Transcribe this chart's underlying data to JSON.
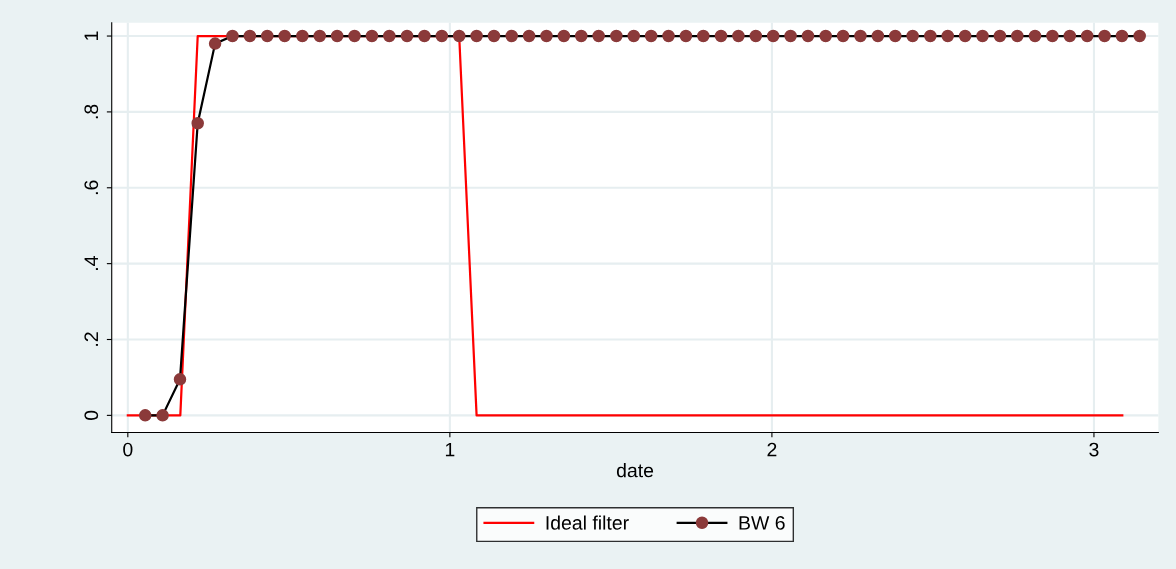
{
  "chart_data": {
    "type": "line",
    "xlabel": "date",
    "xlim": [
      -0.05,
      3.2
    ],
    "xticks": [
      0,
      1,
      2,
      3
    ],
    "ylim": [
      -0.045,
      1.035
    ],
    "yticks": [
      0,
      {
        "value": 0.2,
        "label": ".2"
      },
      {
        "value": 0.4,
        "label": ".4"
      },
      {
        "value": 0.6,
        "label": ".6"
      },
      {
        "value": 0.8,
        "label": ".8"
      },
      1
    ],
    "grid": true,
    "legend": "bottom",
    "series": [
      {
        "name": "Ideal filter",
        "color": "#ff0000",
        "marker": "none",
        "x": [
          0,
          0.163,
          0.217,
          1.029,
          1.083,
          3.088
        ],
        "values": [
          0,
          0,
          1,
          1,
          0,
          0
        ]
      },
      {
        "name": "BW 6",
        "color": "#8b3a3a",
        "marker": "circle",
        "x": [
          0.054,
          0.108,
          0.162,
          0.217,
          0.271,
          0.325,
          0.379,
          0.433,
          0.487,
          0.542,
          0.596,
          0.65,
          0.704,
          0.758,
          0.812,
          0.867,
          0.921,
          0.975,
          1.029,
          1.083,
          1.137,
          1.192,
          1.246,
          1.3,
          1.354,
          1.408,
          1.462,
          1.517,
          1.571,
          1.625,
          1.679,
          1.733,
          1.787,
          1.842,
          1.896,
          1.95,
          2.004,
          2.058,
          2.112,
          2.167,
          2.221,
          2.275,
          2.329,
          2.383,
          2.437,
          2.492,
          2.546,
          2.6,
          2.654,
          2.708,
          2.762,
          2.817,
          2.871,
          2.925,
          2.979,
          3.033,
          3.087,
          3.142
        ],
        "values": [
          0,
          0,
          0.095,
          0.77,
          0.98,
          1,
          1,
          1,
          1,
          1,
          1,
          1,
          1,
          1,
          1,
          1,
          1,
          1,
          1,
          1,
          1,
          1,
          1,
          1,
          1,
          1,
          1,
          1,
          1,
          1,
          1,
          1,
          1,
          1,
          1,
          1,
          1,
          1,
          1,
          1,
          1,
          1,
          1,
          1,
          1,
          1,
          1,
          1,
          1,
          1,
          1,
          1,
          1,
          1,
          1,
          1,
          1,
          1
        ]
      }
    ]
  }
}
